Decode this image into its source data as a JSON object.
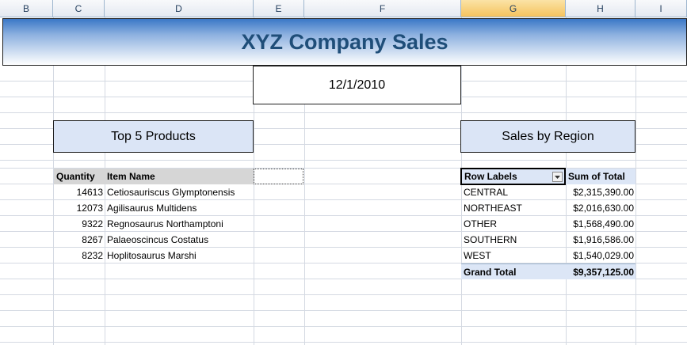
{
  "columns": [
    "B",
    "C",
    "D",
    "E",
    "F",
    "G",
    "H",
    "I"
  ],
  "selected_column": "G",
  "title": "XYZ Company Sales",
  "date": "12/1/2010",
  "top5": {
    "heading": "Top 5 Products",
    "col_quantity": "Quantity",
    "col_item": "Item Name",
    "rows": [
      {
        "qty": "14613",
        "name": "Cetiosauriscus Glymptonensis"
      },
      {
        "qty": "12073",
        "name": "Agilisaurus Multidens"
      },
      {
        "qty": "9322",
        "name": "Regnosaurus Northamptoni"
      },
      {
        "qty": "8267",
        "name": "Palaeoscincus Costatus"
      },
      {
        "qty": "8232",
        "name": "Hoplitosaurus Marshi"
      }
    ]
  },
  "region": {
    "heading": "Sales by Region",
    "col_labels": "Row Labels",
    "col_sum": "Sum of Total",
    "rows": [
      {
        "label": "CENTRAL",
        "value": "$2,315,390.00"
      },
      {
        "label": "NORTHEAST",
        "value": "$2,016,630.00"
      },
      {
        "label": "OTHER",
        "value": "$1,568,490.00"
      },
      {
        "label": "SOUTHERN",
        "value": "$1,916,586.00"
      },
      {
        "label": "WEST",
        "value": "$1,540,029.00"
      }
    ],
    "grand_total_label": "Grand Total",
    "grand_total_value": "$9,357,125.00"
  },
  "icons": {
    "row_labels_filter": "dropdown-arrow-icon"
  },
  "colors": {
    "header_fill": "#dbe5f6",
    "title_text": "#1f4e79",
    "selected_column": "#f5c35e"
  }
}
